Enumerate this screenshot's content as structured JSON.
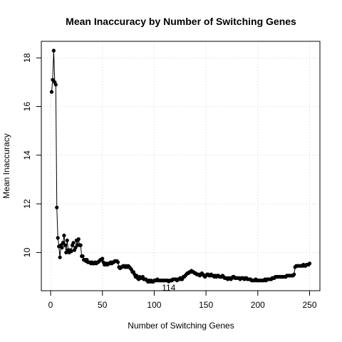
{
  "chart_data": {
    "type": "line",
    "title": "Mean Inaccuracy by Number of Switching Genes",
    "x_label": "Number of Switching Genes",
    "y_label": "Mean Inaccuracy",
    "xlim": [
      -8.96,
      259.96
    ],
    "ylim": [
      8.43,
      18.68
    ],
    "xticks": [
      0,
      50,
      100,
      150,
      200,
      250
    ],
    "yticks": [
      10,
      12,
      14,
      16,
      18
    ],
    "grid": true,
    "annotations": [
      {
        "text": "114",
        "x": 114,
        "y": 8.81
      }
    ],
    "x": [
      1,
      2,
      3,
      4,
      5,
      6,
      7,
      8,
      9,
      10,
      11,
      12,
      13,
      14,
      15,
      16,
      17,
      18,
      19,
      20,
      21,
      22,
      23,
      24,
      25,
      26,
      27,
      28,
      29,
      30,
      31,
      32,
      33,
      34,
      35,
      36,
      37,
      38,
      39,
      40,
      41,
      42,
      43,
      44,
      45,
      46,
      47,
      48,
      49,
      50,
      51,
      52,
      53,
      54,
      55,
      56,
      57,
      58,
      59,
      60,
      61,
      62,
      63,
      64,
      65,
      66,
      67,
      68,
      69,
      70,
      71,
      72,
      73,
      74,
      75,
      76,
      77,
      78,
      79,
      80,
      81,
      82,
      83,
      84,
      85,
      86,
      87,
      88,
      89,
      90,
      91,
      92,
      93,
      94,
      95,
      96,
      97,
      98,
      99,
      100,
      101,
      102,
      103,
      104,
      105,
      106,
      107,
      108,
      109,
      110,
      111,
      112,
      113,
      114,
      115,
      116,
      117,
      118,
      119,
      120,
      121,
      122,
      123,
      124,
      125,
      126,
      127,
      128,
      129,
      130,
      131,
      132,
      133,
      134,
      135,
      136,
      137,
      138,
      139,
      140,
      141,
      142,
      143,
      144,
      145,
      146,
      147,
      148,
      149,
      150,
      151,
      152,
      153,
      154,
      155,
      156,
      157,
      158,
      159,
      160,
      161,
      162,
      163,
      164,
      165,
      166,
      167,
      168,
      169,
      170,
      171,
      172,
      173,
      174,
      175,
      176,
      177,
      178,
      179,
      180,
      181,
      182,
      183,
      184,
      185,
      186,
      187,
      188,
      189,
      190,
      191,
      192,
      193,
      194,
      195,
      196,
      197,
      198,
      199,
      200,
      201,
      202,
      203,
      204,
      205,
      206,
      207,
      208,
      209,
      210,
      211,
      212,
      213,
      214,
      215,
      216,
      217,
      218,
      219,
      220,
      221,
      222,
      223,
      224,
      225,
      226,
      227,
      228,
      229,
      230,
      231,
      232,
      233,
      234,
      235,
      236,
      237,
      238,
      239,
      240,
      241,
      242,
      243,
      244,
      245,
      246,
      247,
      248,
      249,
      250
    ],
    "series": [
      {
        "color": "#000000",
        "values": [
          16.6,
          17.1,
          18.3,
          17.0,
          16.9,
          11.85,
          10.6,
          10.25,
          9.8,
          10.3,
          10.2,
          10.4,
          10.7,
          10.3,
          10.0,
          10.5,
          10.1,
          10.0,
          10.1,
          10.05,
          10.3,
          10.4,
          10.1,
          10.2,
          10.5,
          10.3,
          10.55,
          10.3,
          10.3,
          9.85,
          9.85,
          9.7,
          9.7,
          9.65,
          9.7,
          9.6,
          9.6,
          9.6,
          9.55,
          9.6,
          9.55,
          9.55,
          9.6,
          9.55,
          9.6,
          9.6,
          9.65,
          9.7,
          9.7,
          9.75,
          9.6,
          9.5,
          9.5,
          9.55,
          9.5,
          9.55,
          9.55,
          9.6,
          9.55,
          9.6,
          9.6,
          9.65,
          9.65,
          9.65,
          9.6,
          9.4,
          9.35,
          9.4,
          9.4,
          9.45,
          9.45,
          9.4,
          9.45,
          9.4,
          9.45,
          9.4,
          9.35,
          9.3,
          9.2,
          9.2,
          9.1,
          9.0,
          9.05,
          8.95,
          8.9,
          9.0,
          8.95,
          8.95,
          9.0,
          8.9,
          8.9,
          8.9,
          8.85,
          8.8,
          8.85,
          8.8,
          8.85,
          8.8,
          8.8,
          8.85,
          8.85,
          8.85,
          8.9,
          8.85,
          8.85,
          8.85,
          8.85,
          8.85,
          8.85,
          8.85,
          8.85,
          8.85,
          8.85,
          8.81,
          8.85,
          8.85,
          8.85,
          8.9,
          8.9,
          8.9,
          8.9,
          8.85,
          8.9,
          8.9,
          8.95,
          8.9,
          8.9,
          9.0,
          9.0,
          9.05,
          9.1,
          9.15,
          9.15,
          9.2,
          9.2,
          9.25,
          9.2,
          9.2,
          9.15,
          9.15,
          9.1,
          9.1,
          9.1,
          9.05,
          9.1,
          9.15,
          9.1,
          9.05,
          9.0,
          9.05,
          9.1,
          9.1,
          9.05,
          9.05,
          9.1,
          9.05,
          9.05,
          9.0,
          9.05,
          9.0,
          9.05,
          9.05,
          9.0,
          9.0,
          9.0,
          9.05,
          9.0,
          8.95,
          8.95,
          8.95,
          8.9,
          8.95,
          8.95,
          8.9,
          8.95,
          9.0,
          9.0,
          8.95,
          8.95,
          8.95,
          8.95,
          8.95,
          8.9,
          8.95,
          8.95,
          8.95,
          8.9,
          8.95,
          8.95,
          8.9,
          8.9,
          8.9,
          8.9,
          8.85,
          8.85,
          8.85,
          8.85,
          8.9,
          8.85,
          8.85,
          8.85,
          8.85,
          8.85,
          8.85,
          8.85,
          8.85,
          8.9,
          8.85,
          8.9,
          8.9,
          8.9,
          8.9,
          8.9,
          8.95,
          8.95,
          8.95,
          9.0,
          9.0,
          9.0,
          9.0,
          9.0,
          9.0,
          9.0,
          9.0,
          9.0,
          9.0,
          9.0,
          9.05,
          9.05,
          9.05,
          9.05,
          9.05,
          9.05,
          9.05,
          9.1,
          9.4,
          9.45,
          9.45,
          9.45,
          9.45,
          9.45,
          9.45,
          9.45,
          9.5,
          9.45,
          9.45,
          9.5,
          9.5,
          9.5,
          9.55
        ]
      }
    ]
  }
}
